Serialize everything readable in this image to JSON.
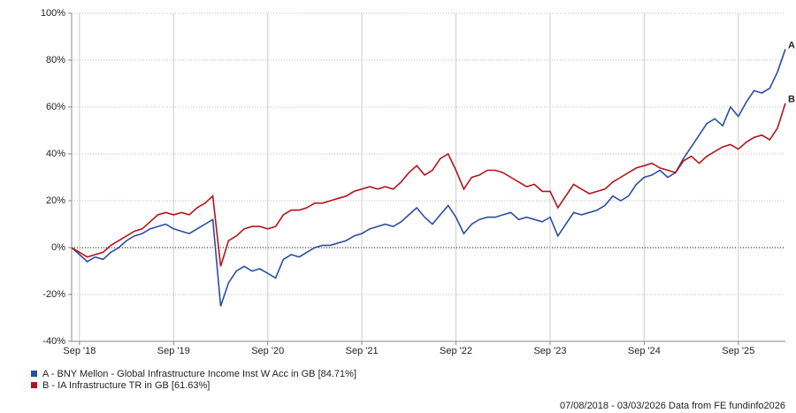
{
  "chart_data": {
    "type": "line",
    "x": [
      "2018-08",
      "2018-09",
      "2018-10",
      "2018-11",
      "2018-12",
      "2019-01",
      "2019-02",
      "2019-03",
      "2019-04",
      "2019-05",
      "2019-06",
      "2019-07",
      "2019-08",
      "2019-09",
      "2019-10",
      "2019-11",
      "2019-12",
      "2020-01",
      "2020-02",
      "2020-03",
      "2020-04",
      "2020-05",
      "2020-06",
      "2020-07",
      "2020-08",
      "2020-09",
      "2020-10",
      "2020-11",
      "2020-12",
      "2021-01",
      "2021-02",
      "2021-03",
      "2021-04",
      "2021-05",
      "2021-06",
      "2021-07",
      "2021-08",
      "2021-09",
      "2021-10",
      "2021-11",
      "2021-12",
      "2022-01",
      "2022-02",
      "2022-03",
      "2022-04",
      "2022-05",
      "2022-06",
      "2022-07",
      "2022-08",
      "2022-09",
      "2022-10",
      "2022-11",
      "2022-12",
      "2023-01",
      "2023-02",
      "2023-03",
      "2023-04",
      "2023-05",
      "2023-06",
      "2023-07",
      "2023-08",
      "2023-09",
      "2023-10",
      "2023-11",
      "2023-12",
      "2024-01",
      "2024-02",
      "2024-03",
      "2024-04",
      "2024-05",
      "2024-06",
      "2024-07",
      "2024-08",
      "2024-09",
      "2024-10",
      "2024-11",
      "2024-12",
      "2025-01",
      "2025-02",
      "2025-03",
      "2025-04",
      "2025-05",
      "2025-06",
      "2025-07",
      "2025-08",
      "2025-09",
      "2025-10",
      "2025-11",
      "2025-12",
      "2026-01",
      "2026-02",
      "2026-03"
    ],
    "series": [
      {
        "name": "A - BNY Mellon - Global Infrastructure Income Inst W Acc in GB [84.71%]",
        "marker": "A",
        "color": "#2b4ea2",
        "values": [
          0,
          -3,
          -6,
          -4,
          -5,
          -2,
          0,
          3,
          5,
          6,
          8,
          9,
          10,
          8,
          7,
          6,
          8,
          10,
          12,
          -25,
          -15,
          -10,
          -8,
          -10,
          -9,
          -11,
          -13,
          -5,
          -3,
          -4,
          -2,
          0,
          1,
          1,
          2,
          3,
          5,
          6,
          8,
          9,
          10,
          9,
          11,
          14,
          17,
          13,
          10,
          14,
          18,
          13,
          6,
          10,
          12,
          13,
          13,
          14,
          15,
          12,
          13,
          12,
          11,
          13,
          5,
          10,
          15,
          14,
          15,
          16,
          18,
          22,
          20,
          22,
          27,
          30,
          31,
          33,
          30,
          32,
          38,
          43,
          48,
          53,
          55,
          52,
          60,
          56,
          62,
          67,
          66,
          68,
          75,
          84.71
        ]
      },
      {
        "name": "B - IA Infrastructure TR in GB [61.63%]",
        "marker": "B",
        "color": "#b3141b",
        "values": [
          0,
          -2,
          -4,
          -3,
          -2,
          1,
          3,
          5,
          7,
          8,
          11,
          14,
          15,
          14,
          15,
          14,
          17,
          19,
          22,
          -8,
          3,
          5,
          8,
          9,
          9,
          8,
          9,
          14,
          16,
          16,
          17,
          19,
          19,
          20,
          21,
          22,
          24,
          25,
          26,
          25,
          26,
          25,
          28,
          32,
          35,
          31,
          33,
          38,
          40,
          33,
          25,
          30,
          31,
          33,
          33,
          32,
          30,
          28,
          26,
          27,
          24,
          24,
          17,
          22,
          27,
          25,
          23,
          24,
          25,
          28,
          30,
          32,
          34,
          35,
          36,
          34,
          33,
          32,
          37,
          39,
          36,
          39,
          41,
          43,
          44,
          42,
          45,
          47,
          48,
          46,
          51,
          61.63
        ]
      }
    ],
    "xlim": [
      "2018-08",
      "2026-03"
    ],
    "xticks": [
      {
        "value": "2018-09",
        "label": "Sep '18"
      },
      {
        "value": "2019-09",
        "label": "Sep '19"
      },
      {
        "value": "2020-09",
        "label": "Sep '20"
      },
      {
        "value": "2021-09",
        "label": "Sep '21"
      },
      {
        "value": "2022-09",
        "label": "Sep '22"
      },
      {
        "value": "2023-09",
        "label": "Sep '23"
      },
      {
        "value": "2024-09",
        "label": "Sep '24"
      },
      {
        "value": "2025-09",
        "label": "Sep '25"
      }
    ],
    "ylim": [
      -40,
      100
    ],
    "yticks": [
      {
        "value": -40,
        "label": "-40%"
      },
      {
        "value": -20,
        "label": "-20%"
      },
      {
        "value": 0,
        "label": "0%"
      },
      {
        "value": 20,
        "label": "20%"
      },
      {
        "value": 40,
        "label": "40%"
      },
      {
        "value": 60,
        "label": "60%"
      },
      {
        "value": 80,
        "label": "80%"
      },
      {
        "value": 100,
        "label": "100%"
      }
    ],
    "grid": true,
    "footer": "07/08/2018 - 03/03/2026 Data from FE fundinfo2026"
  }
}
